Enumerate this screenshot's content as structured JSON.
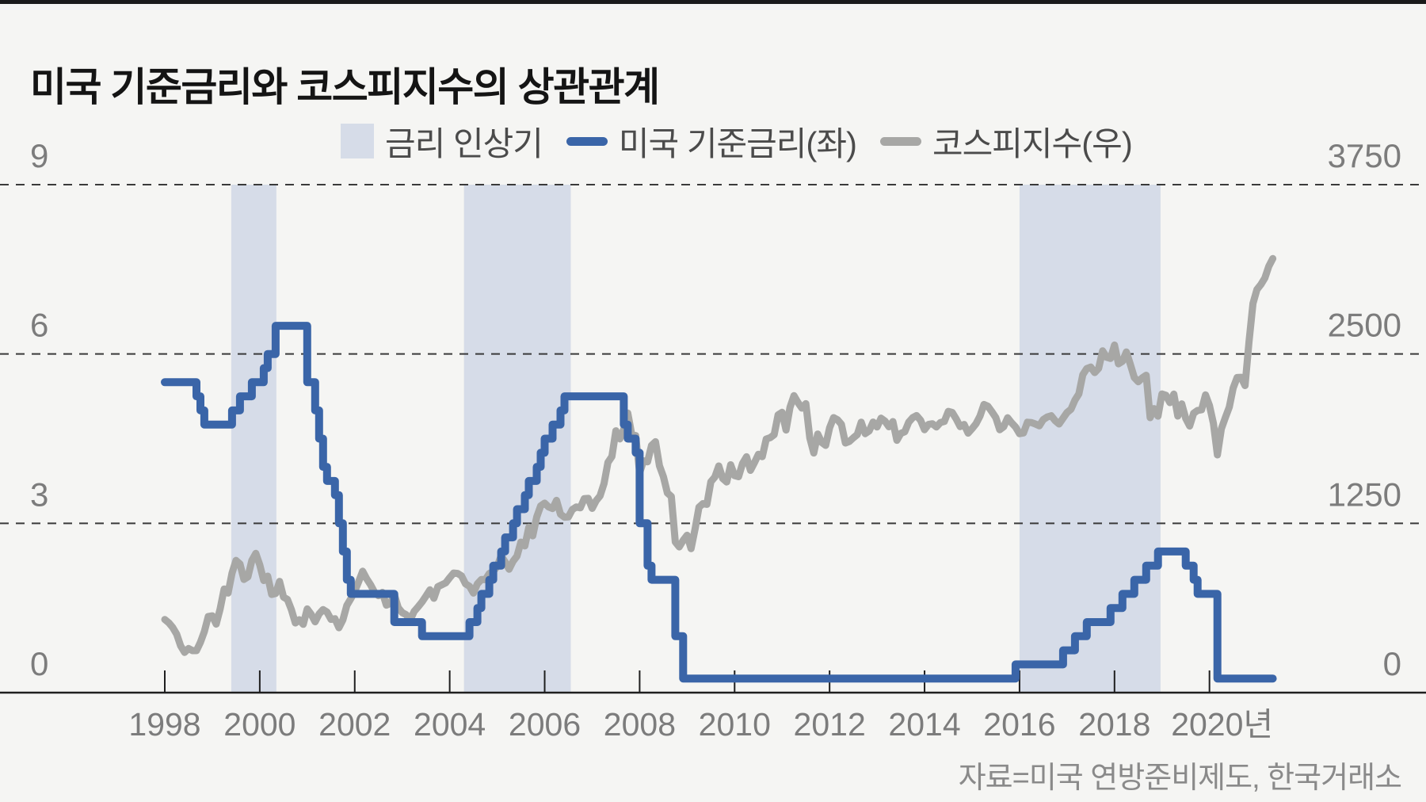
{
  "window": {
    "top_bar_color": "#1a1a1a",
    "background": "#f5f5f3"
  },
  "title": "미국 기준금리와 코스피지수의 상관관계",
  "legend": {
    "items": [
      {
        "type": "area",
        "label": "금리 인상기",
        "color": "#d6dce8"
      },
      {
        "type": "line",
        "label": "미국 기준금리(좌)",
        "color": "#3a65a8"
      },
      {
        "type": "line",
        "label": "코스피지수(우)",
        "color": "#a7a7a5"
      }
    ]
  },
  "source_note": "자료=미국 연방준비제도, 한국거래소",
  "colors": {
    "grid_line": "#3a3a3a",
    "axis_line": "#1f1f1f",
    "axis_text": "#7c7c7c",
    "legend_text": "#4b4b4b",
    "source_text": "#8a8a8a",
    "band": "#d6dce8",
    "fed_line": "#3a65a8",
    "kospi_line": "#a7a7a5"
  },
  "chart_data": {
    "type": "line",
    "title": "미국 기준금리와 코스피지수의 상관관계",
    "grid": "horizontal-dashed",
    "legend_position": "top",
    "x_axis": {
      "start_year": 1998,
      "interval": "monthly",
      "tick_step_years": 2,
      "tick_labels": [
        "1998",
        "2000",
        "2002",
        "2004",
        "2006",
        "2008",
        "2010",
        "2012",
        "2014",
        "2016",
        "2018",
        "2020년"
      ]
    },
    "left_axis": {
      "ticks": [
        "9",
        "6",
        "3",
        "0"
      ],
      "min": 0,
      "max": 9
    },
    "right_axis": {
      "ticks": [
        "3750",
        "2500",
        "1250",
        "0"
      ],
      "min": 0,
      "max": 3750
    },
    "rate_hike_bands_years": [
      [
        1999.4,
        2000.35
      ],
      [
        2004.3,
        2006.55
      ],
      [
        2016.0,
        2018.97
      ]
    ],
    "series": [
      {
        "name": "미국 기준금리(좌)",
        "axis": "left",
        "color": "#3a65a8",
        "line_style": "step",
        "values": [
          5.5,
          5.5,
          5.5,
          5.5,
          5.5,
          5.5,
          5.5,
          5.5,
          5.25,
          5,
          4.75,
          4.75,
          4.75,
          4.75,
          4.75,
          4.75,
          4.75,
          5,
          5,
          5.25,
          5.25,
          5.25,
          5.5,
          5.5,
          5.5,
          5.75,
          6,
          6,
          6.5,
          6.5,
          6.5,
          6.5,
          6.5,
          6.5,
          6.5,
          6.5,
          5.5,
          5.5,
          5,
          4.5,
          4,
          3.75,
          3.75,
          3.5,
          3,
          2.5,
          2,
          1.75,
          1.75,
          1.75,
          1.75,
          1.75,
          1.75,
          1.75,
          1.75,
          1.75,
          1.75,
          1.75,
          1.25,
          1.25,
          1.25,
          1.25,
          1.25,
          1.25,
          1.25,
          1,
          1,
          1,
          1,
          1,
          1,
          1,
          1,
          1,
          1,
          1,
          1,
          1.25,
          1.25,
          1.5,
          1.75,
          1.75,
          2,
          2.25,
          2.25,
          2.5,
          2.75,
          2.75,
          3,
          3.25,
          3.25,
          3.5,
          3.75,
          3.75,
          4,
          4.25,
          4.5,
          4.5,
          4.75,
          4.75,
          5,
          5.25,
          5.25,
          5.25,
          5.25,
          5.25,
          5.25,
          5.25,
          5.25,
          5.25,
          5.25,
          5.25,
          5.25,
          5.25,
          5.25,
          5.25,
          4.75,
          4.5,
          4.5,
          4.25,
          3,
          3,
          2.25,
          2,
          2,
          2,
          2,
          2,
          2,
          1,
          1,
          0.25,
          0.25,
          0.25,
          0.25,
          0.25,
          0.25,
          0.25,
          0.25,
          0.25,
          0.25,
          0.25,
          0.25,
          0.25,
          0.25,
          0.25,
          0.25,
          0.25,
          0.25,
          0.25,
          0.25,
          0.25,
          0.25,
          0.25,
          0.25,
          0.25,
          0.25,
          0.25,
          0.25,
          0.25,
          0.25,
          0.25,
          0.25,
          0.25,
          0.25,
          0.25,
          0.25,
          0.25,
          0.25,
          0.25,
          0.25,
          0.25,
          0.25,
          0.25,
          0.25,
          0.25,
          0.25,
          0.25,
          0.25,
          0.25,
          0.25,
          0.25,
          0.25,
          0.25,
          0.25,
          0.25,
          0.25,
          0.25,
          0.25,
          0.25,
          0.25,
          0.25,
          0.25,
          0.25,
          0.25,
          0.25,
          0.25,
          0.25,
          0.25,
          0.25,
          0.25,
          0.25,
          0.25,
          0.25,
          0.25,
          0.25,
          0.25,
          0.25,
          0.25,
          0.25,
          0.25,
          0.25,
          0.25,
          0.25,
          0.25,
          0.5,
          0.5,
          0.5,
          0.5,
          0.5,
          0.5,
          0.5,
          0.5,
          0.5,
          0.5,
          0.5,
          0.5,
          0.75,
          0.75,
          0.75,
          1,
          1,
          1,
          1.25,
          1.25,
          1.25,
          1.25,
          1.25,
          1.25,
          1.5,
          1.5,
          1.5,
          1.75,
          1.75,
          1.75,
          2,
          2,
          2,
          2.25,
          2.25,
          2.25,
          2.5,
          2.5,
          2.5,
          2.5,
          2.5,
          2.5,
          2.5,
          2.25,
          2.25,
          2,
          1.75,
          1.75,
          1.75,
          1.75,
          1.75,
          0.25,
          0.25,
          0.25,
          0.25,
          0.25,
          0.25,
          0.25,
          0.25,
          0.25,
          0.25,
          0.25,
          0.25,
          0.25,
          0.25,
          0.25
        ]
      },
      {
        "name": "코스피지수(우)",
        "axis": "right",
        "color": "#a7a7a5",
        "line_style": "linear",
        "values": [
          540,
          516,
          481,
          432,
          346,
          297,
          326,
          310,
          310,
          372,
          450,
          562,
          567,
          506,
          619,
          765,
          735,
          883,
          976,
          950,
          836,
          855,
          976,
          1028,
          943,
          828,
          860,
          725,
          732,
          821,
          705,
          688,
          613,
          514,
          538,
          504,
          618,
          578,
          523,
          581,
          613,
          595,
          541,
          545,
          479,
          537,
          644,
          693,
          748,
          820,
          896,
          842,
          797,
          742,
          716,
          740,
          646,
          659,
          724,
          627,
          591,
          575,
          535,
          599,
          633,
          669,
          713,
          759,
          697,
          782,
          796,
          810,
          848,
          883,
          880,
          862,
          803,
          785,
          735,
          803,
          835,
          834,
          879,
          895,
          932,
          1011,
          965,
          911,
          970,
          1008,
          1111,
          1083,
          1221,
          1158,
          1297,
          1379,
          1399,
          1371,
          1359,
          1419,
          1317,
          1295,
          1297,
          1352,
          1371,
          1364,
          1432,
          1434,
          1360,
          1417,
          1452,
          1542,
          1700,
          1743,
          1933,
          1873,
          1946,
          2064,
          1906,
          1897,
          1624,
          1711,
          1704,
          1825,
          1852,
          1675,
          1594,
          1474,
          1448,
          1113,
          1076,
          1124,
          1162,
          1063,
          1206,
          1369,
          1395,
          1390,
          1557,
          1591,
          1673,
          1580,
          1555,
          1682,
          1602,
          1594,
          1692,
          1741,
          1641,
          1698,
          1759,
          1742,
          1872,
          1882,
          1904,
          2051,
          2069,
          1939,
          2106,
          2192,
          2142,
          2100,
          2133,
          1880,
          1769,
          1909,
          1847,
          1825,
          1955,
          2030,
          2014,
          1981,
          1843,
          1854,
          1881,
          1905,
          1996,
          1912,
          1932,
          1997,
          1961,
          2026,
          2004,
          1963,
          2001,
          1863,
          1914,
          1926,
          1997,
          2030,
          2045,
          2011,
          1941,
          1980,
          1985,
          1961,
          1994,
          2002,
          2076,
          2068,
          2020,
          1964,
          1980,
          1916,
          1949,
          1985,
          2041,
          2127,
          2114,
          2074,
          2030,
          1941,
          1963,
          2029,
          1992,
          1961,
          1912,
          1917,
          1996,
          1994,
          1983,
          1970,
          2016,
          2035,
          2044,
          2008,
          1983,
          2026,
          2068,
          2092,
          2160,
          2205,
          2347,
          2392,
          2403,
          2363,
          2394,
          2523,
          2476,
          2467,
          2566,
          2427,
          2446,
          2515,
          2423,
          2326,
          2295,
          2323,
          2343,
          2030,
          2097,
          2041,
          2205,
          2195,
          2141,
          2204,
          2042,
          2131,
          2025,
          1968,
          2063,
          2083,
          2088,
          2198,
          2119,
          1987,
          1755,
          1948,
          2030,
          2108,
          2249,
          2326,
          2328,
          2267,
          2591,
          2873,
          2976,
          3013,
          3061,
          3148,
          3204
        ]
      }
    ]
  }
}
